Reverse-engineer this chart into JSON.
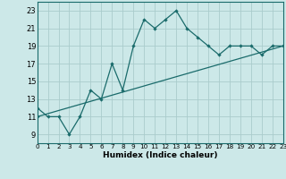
{
  "xlabel": "Humidex (Indice chaleur)",
  "background_color": "#cce8e8",
  "grid_color": "#aacccc",
  "line_color": "#1a6b6b",
  "xmin": 0,
  "xmax": 23,
  "ymin": 8,
  "ymax": 24,
  "yticks": [
    9,
    11,
    13,
    15,
    17,
    19,
    21,
    23
  ],
  "xticks": [
    0,
    1,
    2,
    3,
    4,
    5,
    6,
    7,
    8,
    9,
    10,
    11,
    12,
    13,
    14,
    15,
    16,
    17,
    18,
    19,
    20,
    21,
    22,
    23
  ],
  "curve1_x": [
    0,
    1,
    2,
    3,
    4,
    5,
    6,
    7,
    8,
    9,
    10,
    11,
    12,
    13,
    14,
    15,
    16,
    17,
    18,
    19,
    20,
    21,
    22,
    23
  ],
  "curve1_y": [
    12,
    11,
    11,
    9,
    11,
    14,
    13,
    17,
    14,
    19,
    22,
    21,
    22,
    23,
    21,
    20,
    19,
    18,
    19,
    19,
    19,
    18,
    19,
    19
  ],
  "curve2_x": [
    0,
    23
  ],
  "curve2_y": [
    11,
    19
  ]
}
